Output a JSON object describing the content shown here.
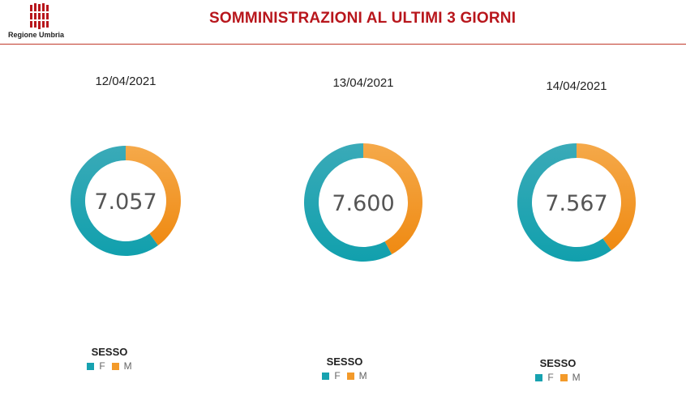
{
  "header": {
    "title": "SOMMINISTRAZIONI AL ULTIMI 3 GIORNI",
    "logo_text": "Regione Umbria"
  },
  "colors": {
    "title": "#b8161c",
    "F": "#17a2b0",
    "M": "#f39a2a"
  },
  "chart_data": [
    {
      "type": "pie",
      "variant": "donut",
      "title": "12/04/2021",
      "center_label": "7.057",
      "total": 7057,
      "legend_title": "SESSO",
      "categories": [
        "F",
        "M"
      ],
      "share": [
        0.6,
        0.4
      ]
    },
    {
      "type": "pie",
      "variant": "donut",
      "title": "13/04/2021",
      "center_label": "7.600",
      "total": 7600,
      "legend_title": "SESSO",
      "categories": [
        "F",
        "M"
      ],
      "share": [
        0.58,
        0.42
      ]
    },
    {
      "type": "pie",
      "variant": "donut",
      "title": "14/04/2021",
      "center_label": "7.567",
      "total": 7567,
      "legend_title": "SESSO",
      "categories": [
        "F",
        "M"
      ],
      "share": [
        0.6,
        0.4
      ]
    }
  ]
}
